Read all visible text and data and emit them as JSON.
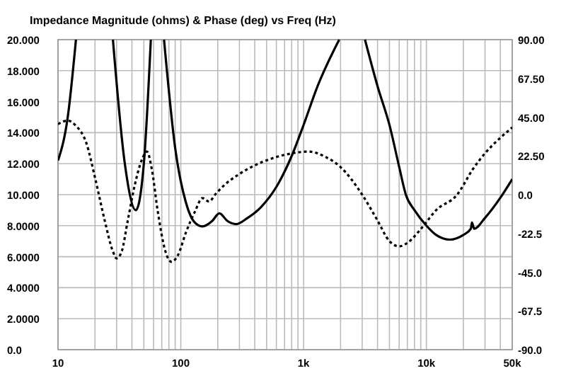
{
  "chart_data": {
    "type": "line",
    "title": "Impedance Magnitude (ohms) & Phase (deg) vs Freq (Hz)",
    "log": "x",
    "grid": true,
    "xlim": [
      10,
      50000
    ],
    "xticks": [
      10,
      {
        "value": 20,
        "label": null
      },
      {
        "value": 30,
        "label": null
      },
      {
        "value": 40,
        "label": null
      },
      {
        "value": 50,
        "label": null
      },
      {
        "value": 60,
        "label": null
      },
      {
        "value": 70,
        "label": null
      },
      {
        "value": 80,
        "label": null
      },
      {
        "value": 90,
        "label": null
      },
      100,
      {
        "value": 200,
        "label": null
      },
      {
        "value": 300,
        "label": null
      },
      {
        "value": 400,
        "label": null
      },
      {
        "value": 500,
        "label": null
      },
      {
        "value": 600,
        "label": null
      },
      {
        "value": 700,
        "label": null
      },
      {
        "value": 800,
        "label": null
      },
      {
        "value": 900,
        "label": null
      },
      {
        "value": 1000,
        "label": "1k"
      },
      {
        "value": 2000,
        "label": null
      },
      {
        "value": 3000,
        "label": null
      },
      {
        "value": 4000,
        "label": null
      },
      {
        "value": 5000,
        "label": null
      },
      {
        "value": 6000,
        "label": null
      },
      {
        "value": 7000,
        "label": null
      },
      {
        "value": 8000,
        "label": null
      },
      {
        "value": 9000,
        "label": null
      },
      {
        "value": 10000,
        "label": "10k"
      },
      {
        "value": 20000,
        "label": null
      },
      {
        "value": 30000,
        "label": null
      },
      {
        "value": 40000,
        "label": null
      },
      {
        "value": 50000,
        "label": "50k"
      }
    ],
    "ylim": [
      0,
      20
    ],
    "yticks": [
      {
        "value": 0,
        "label": "0.0"
      },
      {
        "value": 2,
        "label": "2.0000"
      },
      {
        "value": 4,
        "label": "4.0000"
      },
      {
        "value": 6,
        "label": "6.0000"
      },
      {
        "value": 8,
        "label": "8.0000"
      },
      {
        "value": 10,
        "label": "10.000"
      },
      {
        "value": 12,
        "label": "12.000"
      },
      {
        "value": 14,
        "label": "14.000"
      },
      {
        "value": 16,
        "label": "16.000"
      },
      {
        "value": 18,
        "label": "18.000"
      },
      {
        "value": 20,
        "label": "20.000"
      }
    ],
    "y2lim": [
      -90,
      90
    ],
    "y2ticks": [
      {
        "value": -90,
        "label": "-90.0"
      },
      {
        "value": -67.5,
        "label": "-67.5"
      },
      {
        "value": -45,
        "label": "-45.0"
      },
      {
        "value": -22.5,
        "label": "-22.5"
      },
      {
        "value": 0,
        "label": "0.0"
      },
      {
        "value": 22.5,
        "label": "22.50"
      },
      {
        "value": 45,
        "label": "45.00"
      },
      {
        "value": 67.5,
        "label": "67.50"
      },
      {
        "value": 90,
        "label": "90.00"
      }
    ],
    "series": [
      {
        "color": "#000000",
        "line_style": "solid",
        "x": [
          10,
          12,
          14,
          20,
          28,
          35,
          43,
          50,
          57,
          65,
          73,
          90,
          110,
          130,
          150,
          180,
          206,
          240,
          282,
          350,
          450,
          600,
          800,
          1000,
          1300,
          1950,
          2500,
          3160,
          4000,
          5000,
          6000,
          6800,
          8000,
          10000,
          12000,
          15500,
          20000,
          23000,
          23500,
          24500,
          30000,
          40000,
          50000
        ],
        "values": [
          12.2,
          15,
          20,
          null,
          20,
          12,
          9.0,
          12,
          20,
          null,
          20,
          13,
          9.5,
          8.2,
          7.95,
          8.3,
          8.8,
          8.3,
          8.1,
          8.5,
          9.2,
          10.5,
          12.5,
          14.5,
          17,
          20,
          null,
          20,
          17,
          14.5,
          11.8,
          10,
          9,
          8,
          7.4,
          7.1,
          7.4,
          7.8,
          8.2,
          7.8,
          8.5,
          9.8,
          11
        ]
      },
      {
        "color": "#000000",
        "line_style": "dashed",
        "axis": "y2",
        "x": [
          10,
          12,
          14,
          17,
          20,
          24,
          28,
          30,
          33,
          37,
          42,
          48,
          53,
          58,
          65,
          75,
          84,
          95,
          110,
          130,
          150,
          170,
          190,
          230,
          300,
          400,
          550,
          800,
          1100,
          1500,
          2000,
          3000,
          4000,
          5000,
          6000,
          7000,
          9000,
          12000,
          17800,
          24000,
          30000,
          40000,
          50000
        ],
        "values": [
          41,
          43,
          40,
          30,
          10,
          -15,
          -33,
          -37,
          -33,
          -15,
          5,
          20,
          25,
          15,
          -10,
          -33,
          -39,
          -35,
          -22,
          -10,
          -2,
          -4,
          0,
          6,
          12,
          17,
          21,
          24,
          25,
          22,
          16,
          0,
          -15,
          -27,
          -30,
          -28,
          -20,
          -9,
          0,
          15,
          24,
          33,
          39
        ]
      }
    ]
  }
}
